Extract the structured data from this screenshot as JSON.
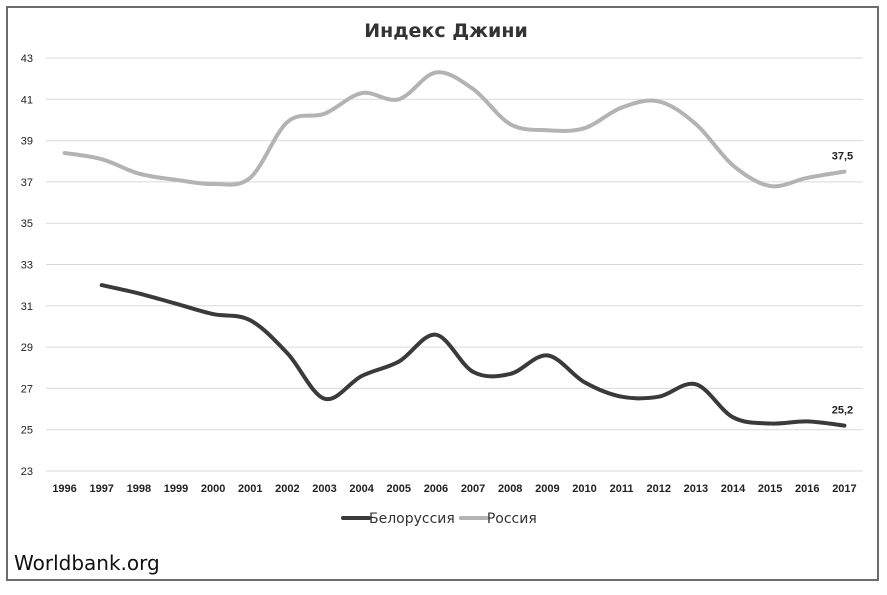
{
  "source": "Worldbank.org",
  "chart_data": {
    "type": "line",
    "title": "Индекс Джини",
    "xlabel": "",
    "ylabel": "",
    "ylim": [
      23,
      43
    ],
    "yticks": [
      "23",
      "25",
      "27",
      "29",
      "31",
      "33",
      "35",
      "37",
      "39",
      "41",
      "43"
    ],
    "categories": [
      "1996",
      "1997",
      "1998",
      "1999",
      "2000",
      "2001",
      "2002",
      "2003",
      "2004",
      "2005",
      "2006",
      "2007",
      "2008",
      "2009",
      "2010",
      "2011",
      "2012",
      "2013",
      "2014",
      "2015",
      "2016",
      "2017"
    ],
    "grid": true,
    "legend_position": "bottom",
    "series": [
      {
        "name": "Белоруссия",
        "color": "#3a3a3a",
        "values": [
          null,
          32.0,
          31.6,
          31.1,
          30.6,
          30.3,
          28.7,
          26.5,
          27.6,
          28.3,
          29.6,
          27.8,
          27.7,
          28.6,
          27.3,
          26.6,
          26.6,
          27.2,
          25.6,
          25.3,
          25.4,
          25.2
        ],
        "end_label": "25,2"
      },
      {
        "name": "Россия",
        "color": "#b3b3b3",
        "values": [
          38.4,
          38.1,
          37.4,
          37.1,
          36.9,
          37.2,
          39.9,
          40.3,
          41.3,
          41.0,
          42.3,
          41.5,
          39.8,
          39.5,
          39.6,
          40.6,
          40.9,
          39.8,
          37.8,
          36.8,
          37.2,
          37.5
        ],
        "end_label": "37,5"
      }
    ]
  }
}
